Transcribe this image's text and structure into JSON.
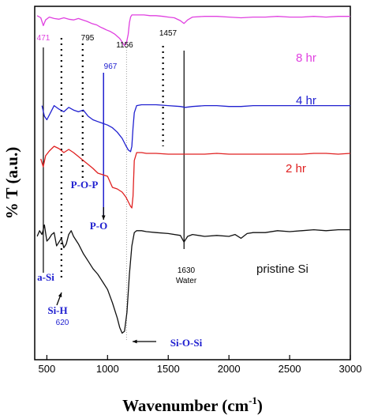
{
  "chart_data": {
    "type": "line",
    "title": "",
    "xlabel": "Wavenumber (cm⁻¹)",
    "xlabel_main": "Wavenumber (cm",
    "xlabel_sup": "-1",
    "xlabel_close": ")",
    "ylabel": "% T (a.u.)",
    "xlim": [
      400,
      3000
    ],
    "xticks": [
      500,
      1000,
      1500,
      2000,
      2500,
      3000
    ],
    "xtick_labels": [
      "500",
      "1000",
      "1500",
      "2000",
      "2500",
      "3000"
    ],
    "grid": false,
    "series": [
      {
        "name": "8 hr",
        "color": "#e040e0",
        "x": [
          420,
          450,
          471,
          490,
          520,
          560,
          600,
          640,
          680,
          720,
          760,
          795,
          830,
          870,
          910,
          940,
          967,
          990,
          1020,
          1060,
          1100,
          1140,
          1156,
          1170,
          1180,
          1190,
          1200,
          1220,
          1260,
          1300,
          1350,
          1400,
          1457,
          1500,
          1550,
          1600,
          1630,
          1660,
          1700,
          1800,
          1900,
          2000,
          2100,
          2200,
          2300,
          2400,
          2500,
          2600,
          2700,
          2800,
          2900,
          3000
        ],
        "y": [
          98,
          95,
          84,
          92,
          96,
          94,
          93,
          95,
          93,
          92,
          94,
          92,
          90,
          87,
          85,
          82,
          80,
          78,
          76,
          72,
          66,
          56,
          60,
          72,
          88,
          96,
          99,
          99,
          99,
          99,
          98,
          98,
          97,
          96,
          95,
          91,
          87,
          92,
          96,
          97,
          97,
          96,
          95,
          96,
          96,
          97,
          96,
          96,
          97,
          96,
          97,
          97
        ]
      },
      {
        "name": "4 hr",
        "color": "#2020d0",
        "x": [
          460,
          480,
          500,
          530,
          560,
          600,
          640,
          680,
          720,
          760,
          800,
          840,
          880,
          920,
          960,
          1000,
          1040,
          1080,
          1120,
          1150,
          1170,
          1190,
          1200,
          1210,
          1220,
          1240,
          1280,
          1320,
          1400,
          1500,
          1600,
          1640,
          1700,
          1800,
          1900,
          2000,
          2100,
          2200,
          2300,
          2400,
          2500,
          2600,
          2700,
          2800,
          2900,
          3000
        ],
        "y": [
          70,
          58,
          54,
          62,
          70,
          66,
          63,
          68,
          65,
          63,
          65,
          58,
          54,
          52,
          50,
          48,
          45,
          40,
          33,
          25,
          20,
          18,
          24,
          45,
          62,
          70,
          71,
          71,
          71,
          70,
          69,
          68,
          69,
          70,
          70,
          69,
          69,
          70,
          70,
          70,
          70,
          70,
          70,
          70,
          70,
          70
        ]
      },
      {
        "name": "2 hr",
        "color": "#e02020",
        "x": [
          450,
          470,
          490,
          520,
          560,
          600,
          640,
          680,
          720,
          760,
          800,
          840,
          880,
          920,
          960,
          1000,
          1040,
          1080,
          1120,
          1150,
          1170,
          1190,
          1200,
          1210,
          1220,
          1240,
          1280,
          1320,
          1400,
          1500,
          1600,
          1700,
          1800,
          1900,
          2000,
          2100,
          2200,
          2300,
          2400,
          2500,
          2600,
          2700,
          2800,
          2900,
          3000
        ],
        "y": [
          32,
          22,
          36,
          42,
          48,
          45,
          40,
          44,
          40,
          35,
          30,
          25,
          20,
          14,
          12,
          10,
          -4,
          -6,
          -10,
          -16,
          -22,
          -28,
          -30,
          -15,
          30,
          40,
          40,
          39,
          39,
          38,
          38,
          38,
          38,
          39,
          38,
          38,
          38,
          38,
          38,
          38,
          38,
          39,
          39,
          38,
          39
        ]
      },
      {
        "name": "pristine Si",
        "color": "#111111",
        "x": [
          420,
          440,
          460,
          480,
          500,
          520,
          540,
          560,
          580,
          600,
          620,
          640,
          660,
          680,
          700,
          720,
          760,
          800,
          840,
          880,
          920,
          960,
          1000,
          1040,
          1080,
          1100,
          1120,
          1140,
          1160,
          1180,
          1200,
          1220,
          1240,
          1280,
          1320,
          1400,
          1500,
          1600,
          1630,
          1660,
          1700,
          1800,
          1900,
          2000,
          2050,
          2100,
          2150,
          2200,
          2300,
          2400,
          2500,
          2600,
          2700,
          2800,
          2900,
          3000
        ],
        "y": [
          -70,
          -64,
          -68,
          -58,
          -75,
          -72,
          -68,
          -66,
          -80,
          -76,
          -72,
          -82,
          -78,
          -68,
          -64,
          -70,
          -78,
          -88,
          -96,
          -104,
          -110,
          -118,
          -126,
          -140,
          -156,
          -166,
          -172,
          -170,
          -150,
          -110,
          -80,
          -66,
          -64,
          -64,
          -65,
          -66,
          -67,
          -69,
          -76,
          -70,
          -68,
          -70,
          -69,
          -70,
          -68,
          -72,
          -67,
          -66,
          -66,
          -64,
          -65,
          -64,
          -63,
          -64,
          -63,
          -63
        ]
      }
    ],
    "annotations": [
      {
        "kind": "peak-number",
        "text": "471",
        "x": 471,
        "color": "#e040e0"
      },
      {
        "kind": "peak-number",
        "text": "795",
        "x": 795,
        "color": "#000000"
      },
      {
        "kind": "peak-number",
        "text": "967",
        "x": 967,
        "color": "#2020d0"
      },
      {
        "kind": "peak-number",
        "text": "1156",
        "x": 1156,
        "color": "#000000"
      },
      {
        "kind": "peak-number",
        "text": "1457",
        "x": 1457,
        "color": "#000000"
      },
      {
        "kind": "peak-number",
        "text": "1630",
        "x": 1630,
        "color": "#000000"
      },
      {
        "kind": "band",
        "text": "Water",
        "color": "#000000"
      },
      {
        "kind": "band",
        "text": "P-O-P",
        "color": "#2020d0"
      },
      {
        "kind": "band",
        "text": "P-O",
        "color": "#2020d0"
      },
      {
        "kind": "band",
        "text": "a-Si",
        "color": "#2020d0"
      },
      {
        "kind": "band",
        "text": "Si-H",
        "color": "#2020d0"
      },
      {
        "kind": "peak-number",
        "text": "620",
        "x": 620,
        "color": "#2020d0"
      },
      {
        "kind": "band",
        "text": "Si-O-Si",
        "color": "#2020d0"
      }
    ]
  }
}
